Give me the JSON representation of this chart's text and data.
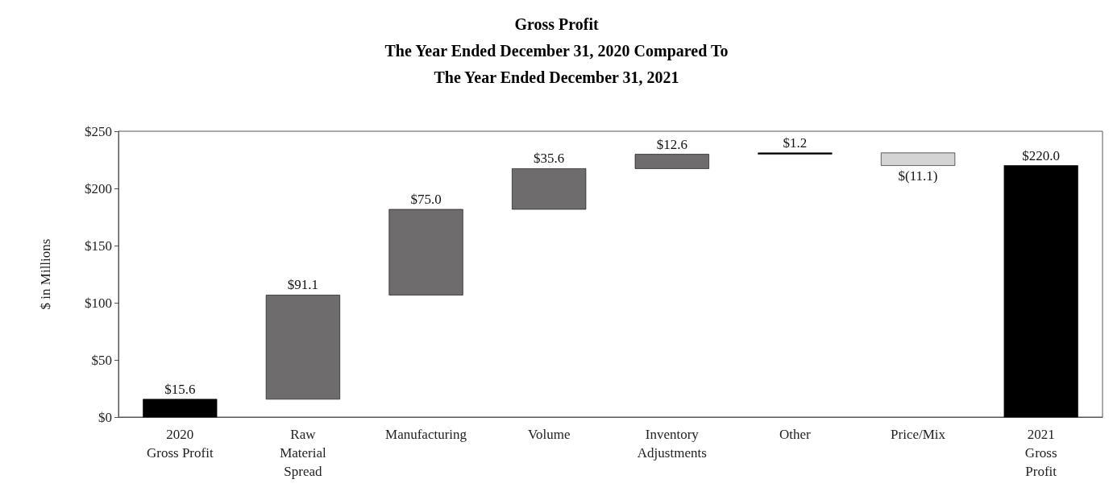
{
  "chart_data": {
    "type": "bar",
    "title": "Gross Profit\nThe Year Ended December 31, 2020 Compared To\nThe Year Ended December 31, 2021",
    "ylabel": "$ in Millions",
    "categories": [
      "2020\nGross Profit",
      "Raw\nMaterial\nSpread",
      "Manufacturing",
      "Volume",
      "Inventory\nAdjustments",
      "Other",
      "Price/Mix",
      "2021\nGross\nProfit"
    ],
    "values": [
      15.6,
      91.1,
      75.0,
      35.6,
      12.6,
      1.2,
      -11.1,
      220.0
    ],
    "base": [
      0,
      15.6,
      106.7,
      181.7,
      217.3,
      229.9,
      231.1,
      0
    ],
    "colors": [
      "#000000",
      "#6e6c6c",
      "#6e6c6c",
      "#6e6c6c",
      "#6e6c6c",
      "#000000",
      "#d4d4d4",
      "#000000"
    ],
    "value_labels": [
      "$15.6",
      "$91.1",
      "$75.0",
      "$35.6",
      "$12.6",
      "$1.2",
      "$(11.1)",
      "$220.0"
    ],
    "ylim": [
      0,
      250
    ],
    "yticks": [
      {
        "value": 0,
        "label": "$0"
      },
      {
        "value": 50,
        "label": "$50"
      },
      {
        "value": 100,
        "label": "$100"
      },
      {
        "value": 150,
        "label": "$150"
      },
      {
        "value": 200,
        "label": "$200"
      },
      {
        "value": 250,
        "label": "$250"
      }
    ],
    "grid": false
  }
}
